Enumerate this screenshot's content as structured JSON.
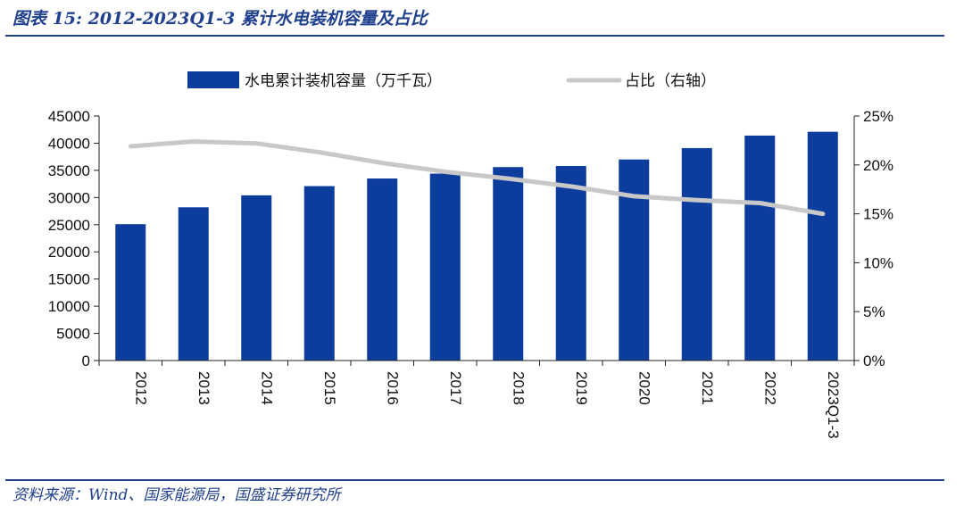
{
  "figure": {
    "title": "图表 15:  2012-2023Q1-3 累计水电装机容量及占比",
    "source": "资料来源：Wind、国家能源局，国盛证券研究所"
  },
  "colors": {
    "bar": "#0d3d9c",
    "line": "#c8c8c8",
    "heading": "#1f3f8f",
    "axis": "#222222"
  },
  "chart_data": {
    "type": "bar",
    "categories": [
      "2012",
      "2013",
      "2014",
      "2015",
      "2016",
      "2017",
      "2018",
      "2019",
      "2020",
      "2021",
      "2022",
      "2023Q1-3"
    ],
    "series": [
      {
        "name": "水电累计装机容量（万千瓦）",
        "type": "bar",
        "axis": "left",
        "values": [
          25100,
          28200,
          30400,
          32100,
          33500,
          34400,
          35600,
          35800,
          37000,
          39100,
          41400,
          42100
        ]
      },
      {
        "name": "占比（右轴）",
        "type": "line",
        "axis": "right",
        "values": [
          21.9,
          22.4,
          22.2,
          21.3,
          20.2,
          19.3,
          18.6,
          17.8,
          16.8,
          16.4,
          16.1,
          15.0
        ]
      }
    ],
    "y_left": {
      "ylim": [
        0,
        45000
      ],
      "ticks": [
        "0",
        "5000",
        "10000",
        "15000",
        "20000",
        "25000",
        "30000",
        "35000",
        "40000",
        "45000"
      ]
    },
    "y_right": {
      "ylim": [
        0,
        25
      ],
      "ticks": [
        "0%",
        "5%",
        "10%",
        "15%",
        "20%",
        "25%"
      ]
    },
    "grid": false,
    "legend_position": "top-center"
  }
}
